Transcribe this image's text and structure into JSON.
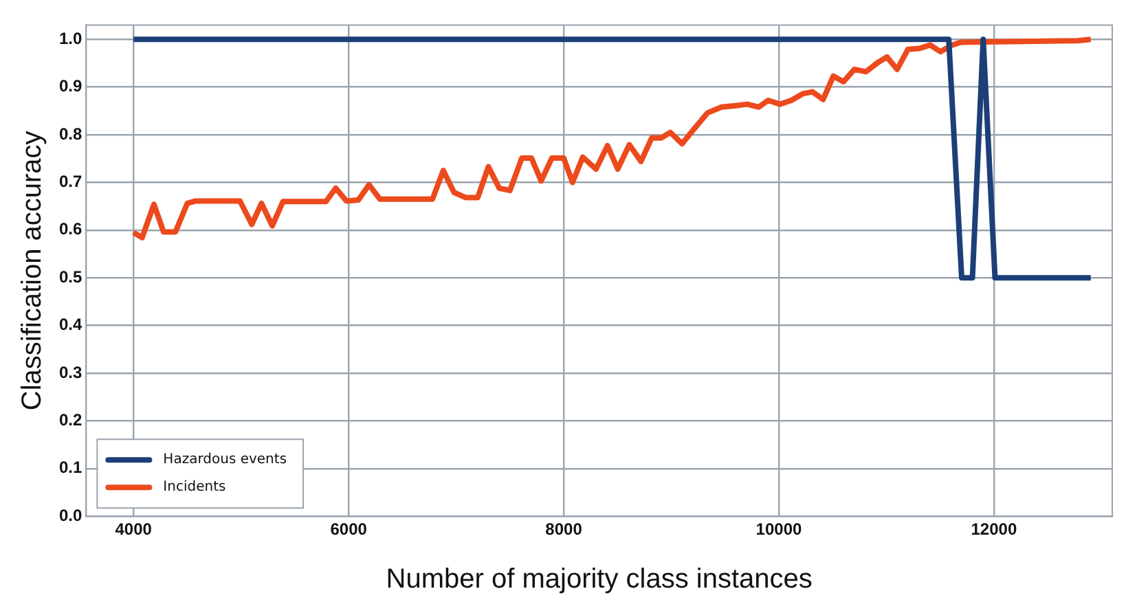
{
  "chart_data": {
    "type": "line",
    "xlabel": "Number of majority class instances",
    "ylabel": "Classification accuracy",
    "xlim": [
      3560,
      13100
    ],
    "xticks": [
      4000,
      6000,
      8000,
      10000,
      12000
    ],
    "ylim": [
      0,
      1.03
    ],
    "yticks": [
      {
        "value": 0,
        "label": "0.0"
      },
      {
        "value": 0.1,
        "label": "0.1"
      },
      {
        "value": 0.2,
        "label": "0.2"
      },
      {
        "value": 0.3,
        "label": "0.3"
      },
      {
        "value": 0.4,
        "label": "0.4"
      },
      {
        "value": 0.5,
        "label": "0.5"
      },
      {
        "value": 0.6,
        "label": "0.6"
      },
      {
        "value": 0.7,
        "label": "0.7"
      },
      {
        "value": 0.8,
        "label": "0.8"
      },
      {
        "value": 0.9,
        "label": "0.9"
      },
      {
        "value": 1,
        "label": "1.0"
      }
    ],
    "grid": true,
    "legend": "bottom left",
    "marker": "none",
    "line_style": "solid",
    "series": [
      {
        "name": "Hazardous events",
        "color": "#1c3f78",
        "x": [
          4000,
          11580,
          11700,
          11800,
          11900,
          12010,
          12900
        ],
        "values": [
          1,
          1,
          0.5,
          0.5,
          1,
          0.5,
          0.5
        ]
      },
      {
        "name": "Incidents",
        "color": "#ec4a1c",
        "x": [
          4000,
          4080,
          4190,
          4280,
          4390,
          4500,
          4580,
          4990,
          5100,
          5190,
          5290,
          5390,
          5790,
          5880,
          5980,
          6090,
          6190,
          6290,
          6780,
          6880,
          6980,
          7090,
          7200,
          7300,
          7400,
          7500,
          7610,
          7700,
          7790,
          7890,
          8000,
          8082,
          8177,
          8300,
          8407,
          8502,
          8610,
          8718,
          8818,
          8905,
          8991,
          9100,
          9208,
          9338,
          9468,
          9598,
          9706,
          9814,
          9901,
          10010,
          10117,
          10225,
          10312,
          10412,
          10507,
          10602,
          10702,
          10810,
          10918,
          11005,
          11100,
          11200,
          11308,
          11408,
          11503,
          11611,
          11698,
          12780,
          12900
        ],
        "values": [
          0.595,
          0.584,
          0.654,
          0.596,
          0.596,
          0.656,
          0.661,
          0.661,
          0.612,
          0.656,
          0.609,
          0.66,
          0.66,
          0.688,
          0.661,
          0.663,
          0.695,
          0.665,
          0.665,
          0.725,
          0.679,
          0.668,
          0.668,
          0.733,
          0.688,
          0.683,
          0.751,
          0.751,
          0.703,
          0.751,
          0.751,
          0.7,
          0.753,
          0.728,
          0.777,
          0.728,
          0.779,
          0.744,
          0.793,
          0.793,
          0.805,
          0.781,
          0.811,
          0.846,
          0.858,
          0.861,
          0.864,
          0.858,
          0.872,
          0.864,
          0.872,
          0.886,
          0.89,
          0.874,
          0.923,
          0.911,
          0.937,
          0.932,
          0.951,
          0.963,
          0.937,
          0.979,
          0.981,
          0.988,
          0.974,
          0.988,
          0.994,
          0.997,
          1
        ]
      }
    ]
  }
}
